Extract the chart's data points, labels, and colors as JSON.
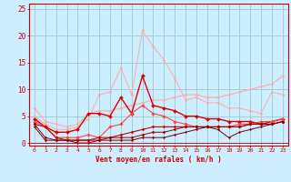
{
  "x": [
    0,
    1,
    2,
    3,
    4,
    5,
    6,
    7,
    8,
    9,
    10,
    11,
    12,
    13,
    14,
    15,
    16,
    17,
    18,
    19,
    20,
    21,
    22,
    23
  ],
  "series": [
    {
      "values": [
        6.5,
        4.0,
        3.5,
        3.0,
        3.5,
        5.5,
        6.0,
        6.0,
        6.5,
        7.0,
        7.5,
        8.0,
        8.0,
        8.5,
        9.0,
        9.0,
        8.5,
        8.5,
        9.0,
        9.5,
        10.0,
        10.5,
        11.0,
        12.5
      ],
      "color": "#ffaaaa",
      "linewidth": 0.8,
      "marker": "D",
      "markersize": 1.5
    },
    {
      "values": [
        5.0,
        3.5,
        2.5,
        2.5,
        3.0,
        4.5,
        9.0,
        9.5,
        14.0,
        9.0,
        21.0,
        18.0,
        15.5,
        12.0,
        8.0,
        8.5,
        7.5,
        7.5,
        6.5,
        6.5,
        6.0,
        5.5,
        9.5,
        9.0
      ],
      "color": "#ffaaaa",
      "linewidth": 0.7,
      "marker": "D",
      "markersize": 1.5
    },
    {
      "values": [
        4.5,
        3.0,
        2.0,
        2.0,
        2.5,
        5.5,
        5.5,
        5.0,
        8.5,
        5.5,
        12.5,
        7.0,
        6.5,
        6.0,
        5.0,
        5.0,
        4.5,
        4.5,
        4.0,
        4.0,
        4.0,
        3.5,
        4.0,
        4.5
      ],
      "color": "#dd0000",
      "linewidth": 1.0,
      "marker": "D",
      "markersize": 2.0
    },
    {
      "values": [
        4.0,
        3.0,
        1.0,
        1.0,
        1.0,
        1.5,
        1.0,
        3.0,
        3.5,
        5.5,
        7.0,
        5.5,
        5.0,
        4.0,
        3.5,
        3.0,
        3.0,
        3.0,
        3.0,
        3.5,
        3.5,
        4.0,
        4.0,
        4.5
      ],
      "color": "#ff4444",
      "linewidth": 0.8,
      "marker": "D",
      "markersize": 1.8
    },
    {
      "values": [
        3.5,
        3.0,
        1.0,
        0.5,
        0.5,
        0.5,
        1.0,
        1.0,
        1.5,
        2.0,
        2.5,
        3.0,
        3.0,
        3.0,
        3.0,
        3.0,
        3.0,
        3.0,
        3.0,
        3.0,
        3.5,
        3.5,
        3.5,
        4.0
      ],
      "color": "#cc0000",
      "linewidth": 0.8,
      "marker": "D",
      "markersize": 1.5
    },
    {
      "values": [
        3.5,
        1.0,
        0.5,
        0.5,
        0.5,
        0.5,
        0.5,
        1.0,
        1.0,
        1.0,
        1.5,
        2.0,
        2.0,
        2.5,
        3.0,
        3.0,
        3.0,
        3.0,
        3.0,
        3.0,
        3.5,
        3.5,
        3.5,
        4.0
      ],
      "color": "#990000",
      "linewidth": 0.7,
      "marker": "D",
      "markersize": 1.5
    },
    {
      "values": [
        3.0,
        0.5,
        0.5,
        0.5,
        0.0,
        0.0,
        0.5,
        0.5,
        0.5,
        0.5,
        1.0,
        1.0,
        1.0,
        1.5,
        2.0,
        2.5,
        3.0,
        2.5,
        1.0,
        2.0,
        2.5,
        3.0,
        3.5,
        4.0
      ],
      "color": "#770000",
      "linewidth": 0.7,
      "marker": "D",
      "markersize": 1.2
    }
  ],
  "xlabel": "Vent moyen/en rafales ( km/h )",
  "ylim": [
    -0.5,
    26
  ],
  "yticks": [
    0,
    5,
    10,
    15,
    20,
    25
  ],
  "xticks": [
    0,
    1,
    2,
    3,
    4,
    5,
    6,
    7,
    8,
    9,
    10,
    11,
    12,
    13,
    14,
    15,
    16,
    17,
    18,
    19,
    20,
    21,
    22,
    23
  ],
  "bg_color": "#cceeff",
  "grid_color": "#99cccc",
  "axis_color": "#cc0000",
  "label_color": "#cc0000",
  "tick_color": "#cc0000"
}
